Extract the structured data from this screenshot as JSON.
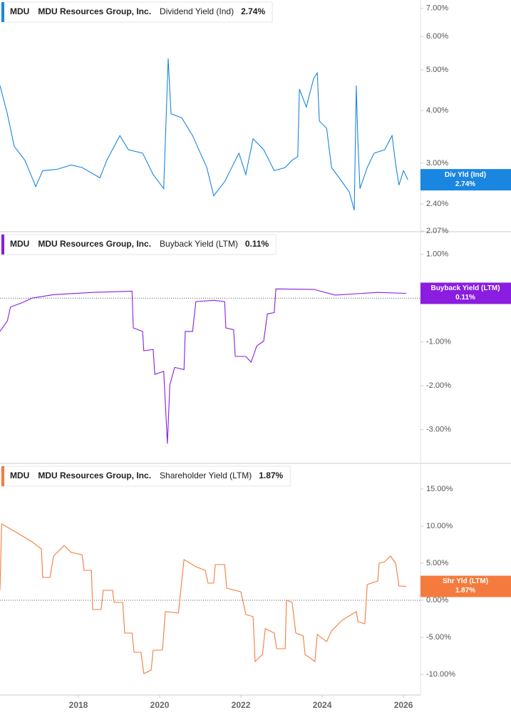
{
  "chart_data": [
    {
      "type": "line",
      "ticker": "MDU",
      "company": "MDU Resources Group, Inc.",
      "log_scale": true,
      "zero_line": false,
      "x": [
        2016.07,
        2016.25,
        2016.42,
        2016.68,
        2016.95,
        2017.12,
        2017.47,
        2017.82,
        2018.09,
        2018.53,
        2018.7,
        2019.02,
        2019.23,
        2019.58,
        2019.84,
        2020.1,
        2020.21,
        2020.28,
        2020.54,
        2020.81,
        2021.16,
        2021.33,
        2021.6,
        2021.95,
        2022.12,
        2022.3,
        2022.56,
        2022.82,
        2023.09,
        2023.26,
        2023.4,
        2023.44,
        2023.61,
        2023.79,
        2023.88,
        2023.93,
        2024.11,
        2024.23,
        2024.49,
        2024.67,
        2024.79,
        2024.84,
        2024.88,
        2024.93,
        2025.11,
        2025.28,
        2025.54,
        2025.72,
        2025.81,
        2025.89,
        2026.0,
        2026.11
      ],
      "xlim": [
        2016.07,
        2026.42
      ],
      "ylim": [
        2.07,
        7.33
      ],
      "yticks": [
        {
          "value": 7,
          "label": "7.00%"
        },
        {
          "value": 6,
          "label": "6.00%"
        },
        {
          "value": 5,
          "label": "5.00%"
        },
        {
          "value": 4,
          "label": "4.00%"
        },
        {
          "value": 3,
          "label": "3.00%"
        },
        {
          "value": 2.4,
          "label": "2.40%"
        },
        {
          "value": 2.07,
          "label": "2.07%"
        }
      ],
      "series": [
        {
          "name": "Dividend Yield (Ind)",
          "short_name": "Div Yld (Ind)",
          "color": "#1a86e0",
          "last_label": "2.74%",
          "values": [
            4.59,
            3.93,
            3.29,
            3.05,
            2.64,
            2.88,
            2.9,
            2.97,
            2.93,
            2.77,
            3.05,
            3.49,
            3.23,
            3.17,
            2.82,
            2.61,
            5.32,
            3.93,
            3.85,
            3.49,
            2.93,
            2.51,
            2.71,
            3.17,
            2.82,
            3.43,
            3.23,
            2.88,
            2.93,
            3.05,
            3.11,
            4.5,
            4.08,
            4.77,
            4.92,
            3.78,
            3.63,
            2.93,
            2.71,
            2.56,
            2.32,
            4.59,
            3.36,
            2.61,
            2.93,
            3.17,
            3.23,
            3.49,
            2.98,
            2.66,
            2.88,
            2.74
          ]
        }
      ]
    },
    {
      "type": "line",
      "ticker": "MDU",
      "company": "MDU Resources Group, Inc.",
      "log_scale": false,
      "zero_line": true,
      "x": [
        2016.07,
        2016.25,
        2016.33,
        2016.6,
        2016.86,
        2017.39,
        2018.35,
        2019.32,
        2019.35,
        2019.58,
        2019.61,
        2019.84,
        2019.88,
        2020.1,
        2020.19,
        2020.25,
        2020.37,
        2020.6,
        2020.63,
        2020.81,
        2020.89,
        2021.33,
        2021.6,
        2021.63,
        2021.82,
        2021.86,
        2022.12,
        2022.25,
        2022.39,
        2022.56,
        2022.65,
        2022.82,
        2022.86,
        2023.79,
        2024.32,
        2025.37,
        2026.07
      ],
      "xlim": [
        2016.07,
        2026.42
      ],
      "ylim": [
        -3.77,
        1.5
      ],
      "yticks": [
        {
          "value": 1,
          "label": "1.00%"
        },
        {
          "value": -1,
          "label": "-1.00%"
        },
        {
          "value": -2,
          "label": "-2.00%"
        },
        {
          "value": -3,
          "label": "-3.00%"
        }
      ],
      "series": [
        {
          "name": "Buyback Yield (LTM)",
          "short_name": "Buyback Yield (LTM)",
          "color": "#8a1de0",
          "last_label": "0.11%",
          "values": [
            -0.76,
            -0.52,
            -0.2,
            -0.11,
            0,
            0.08,
            0.13,
            0.16,
            -0.68,
            -0.76,
            -1.2,
            -1.17,
            -1.74,
            -1.67,
            -3.32,
            -1.98,
            -1.58,
            -1.63,
            -0.76,
            -0.76,
            -0.08,
            -0.05,
            -0.08,
            -0.68,
            -0.72,
            -1.33,
            -1.33,
            -1.46,
            -1.09,
            -0.98,
            -0.36,
            -0.33,
            0.21,
            0.2,
            0.07,
            0.13,
            0.11
          ]
        }
      ]
    },
    {
      "type": "line",
      "ticker": "MDU",
      "company": "MDU Resources Group, Inc.",
      "log_scale": false,
      "zero_line": true,
      "x": [
        2016.07,
        2016.11,
        2016.42,
        2016.86,
        2017.09,
        2017.12,
        2017.3,
        2017.39,
        2017.65,
        2017.82,
        2018.09,
        2018.14,
        2018.32,
        2018.35,
        2018.56,
        2018.61,
        2018.84,
        2018.88,
        2019.09,
        2019.14,
        2019.32,
        2019.37,
        2019.54,
        2019.61,
        2019.79,
        2019.84,
        2020.07,
        2020.14,
        2020.46,
        2020.6,
        2020.89,
        2021.12,
        2021.19,
        2021.33,
        2021.37,
        2021.6,
        2021.65,
        2022.0,
        2022.12,
        2022.3,
        2022.35,
        2022.53,
        2022.6,
        2022.82,
        2022.88,
        2023.09,
        2023.12,
        2023.26,
        2023.35,
        2023.53,
        2023.58,
        2023.82,
        2023.88,
        2024.11,
        2024.23,
        2024.49,
        2024.84,
        2024.88,
        2025.05,
        2025.11,
        2025.37,
        2025.4,
        2025.54,
        2025.68,
        2025.81,
        2025.89,
        2026.07
      ],
      "xlim": [
        2016.07,
        2026.42
      ],
      "xticks": [
        2018,
        2020,
        2022,
        2024,
        2026
      ],
      "ylim": [
        -12.79,
        18.37
      ],
      "yticks": [
        {
          "value": 15,
          "label": "15.00%"
        },
        {
          "value": 10,
          "label": "10.00%"
        },
        {
          "value": 5,
          "label": "5.00%"
        },
        {
          "value": 0,
          "label": "0.00%"
        },
        {
          "value": -5,
          "label": "-5.00%"
        },
        {
          "value": -10,
          "label": "-10.00%"
        }
      ],
      "series": [
        {
          "name": "Shareholder Yield (LTM)",
          "short_name": "Shr Yld (LTM)",
          "color": "#f47b3d",
          "last_label": "1.87%",
          "values": [
            1.35,
            10.29,
            9.33,
            7.88,
            6.92,
            3.08,
            3.08,
            5.96,
            7.4,
            6.44,
            6.15,
            4.04,
            4.04,
            -1.25,
            -1.25,
            1.35,
            1.35,
            -0.29,
            -0.29,
            -4.42,
            -4.42,
            -7.02,
            -7.02,
            -9.9,
            -9.42,
            -6.73,
            -6.73,
            -1.54,
            -1.73,
            5.48,
            4.52,
            4.04,
            2.31,
            2.31,
            4.81,
            4.81,
            1.63,
            1.15,
            -1.92,
            -2.21,
            -8.27,
            -7.31,
            -3.85,
            -4.42,
            -6.54,
            -6.54,
            0,
            -0.29,
            -4.42,
            -4.81,
            -7.31,
            -8.27,
            -4.62,
            -5.58,
            -4.13,
            -2.69,
            -1.54,
            -2.88,
            -3.17,
            2.12,
            2.6,
            5.0,
            5.19,
            5.96,
            5.0,
            1.92,
            1.87
          ]
        }
      ]
    }
  ]
}
